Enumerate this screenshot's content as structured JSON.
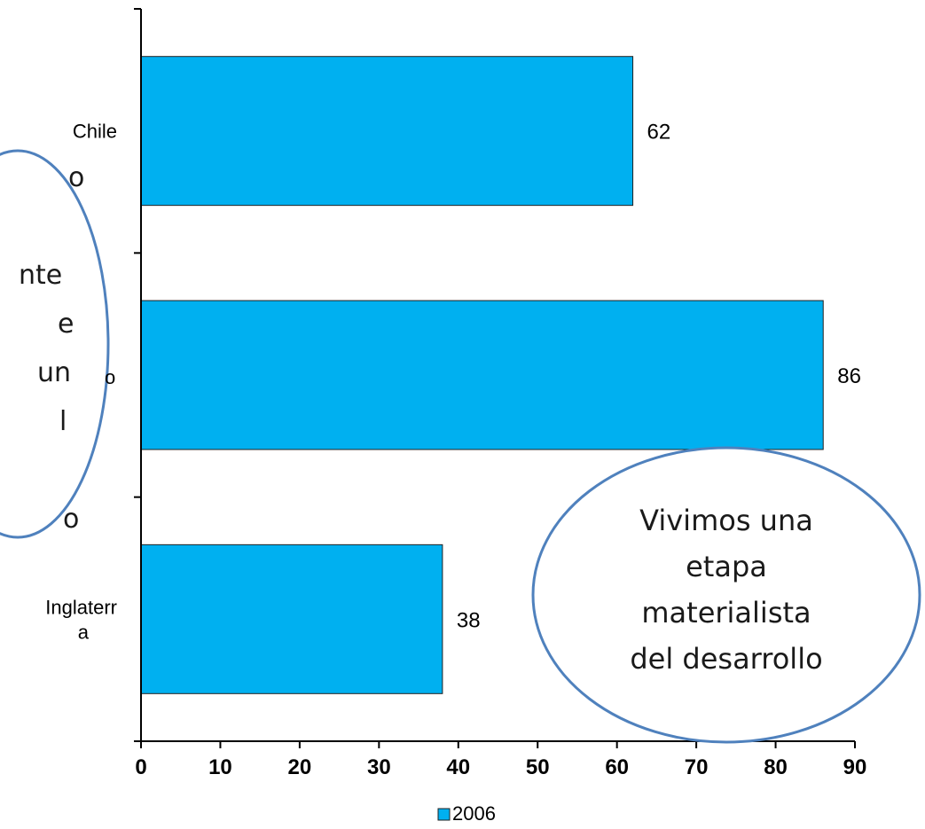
{
  "chart_data": {
    "type": "bar",
    "orientation": "horizontal",
    "categories": [
      "Chile",
      "",
      "Inglaterr\na"
    ],
    "series": [
      {
        "name": "2006",
        "values": [
          62,
          86,
          38
        ],
        "color": "#00B0F0"
      }
    ],
    "data_labels": [
      "62",
      "86",
      "38"
    ],
    "xlim": [
      0,
      90
    ],
    "x_ticks": [
      "0",
      "10",
      "20",
      "30",
      "40",
      "50",
      "60",
      "70",
      "80",
      "90"
    ],
    "grid": false,
    "legend": "bottom"
  },
  "callouts": {
    "left_bubble_lines": [
      "o",
      "",
      "nte",
      "e",
      "un",
      "l",
      "",
      "o"
    ],
    "left_bubble_partial_label": "o",
    "right_bubble_lines": [
      "Vivimos una",
      "etapa",
      "materialista",
      "del desarrollo"
    ]
  },
  "colors": {
    "bar": "#00B0F0",
    "bubble_stroke": "#4F81BD",
    "axis": "#000000"
  }
}
